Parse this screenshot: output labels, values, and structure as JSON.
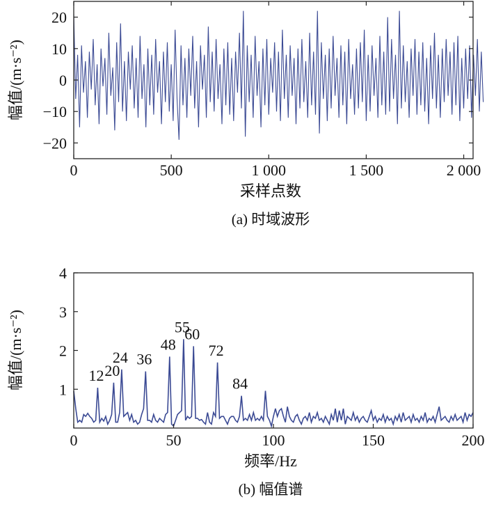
{
  "line_color": "#3b4a94",
  "chart_data": [
    {
      "type": "line",
      "caption": "(a) 时域波形",
      "xlabel": "采样点数",
      "ylabel": "幅值/(m·s⁻²)",
      "xlim": [
        0,
        2048
      ],
      "ylim": [
        -25,
        25
      ],
      "xticks": [
        0,
        500,
        1000,
        1500,
        2000
      ],
      "xtick_labels": [
        "0",
        "500",
        "1 000",
        "1 500",
        "2 000"
      ],
      "yticks": [
        20,
        10,
        0,
        -10,
        -20
      ],
      "ytick_labels": [
        "20",
        "10",
        "0",
        "−10",
        "−20"
      ],
      "grid": false,
      "x_step": 10,
      "values": [
        21,
        -6,
        8,
        -15,
        11,
        -4,
        6,
        -12,
        9,
        -3,
        13,
        -8,
        5,
        -14,
        10,
        -2,
        7,
        -11,
        15,
        -5,
        4,
        -16,
        12,
        -7,
        18,
        -10,
        6,
        -13,
        9,
        -3,
        11,
        -9,
        7,
        -12,
        14,
        -6,
        5,
        -15,
        10,
        -8,
        8,
        -11,
        13,
        -4,
        6,
        -14,
        9,
        -7,
        12,
        -10,
        5,
        -13,
        16,
        -6,
        -19,
        11,
        -8,
        7,
        -12,
        10,
        -5,
        14,
        -9,
        6,
        -15,
        11,
        -3,
        8,
        -12,
        17,
        -7,
        9,
        -10,
        13,
        -6,
        5,
        -14,
        10,
        -8,
        12,
        -11,
        7,
        -13,
        9,
        -4,
        15,
        -9,
        22,
        -18,
        11,
        -7,
        8,
        -12,
        14,
        -5,
        6,
        -15,
        10,
        -8,
        13,
        -11,
        7,
        -4,
        12,
        -10,
        9,
        -13,
        16,
        -6,
        8,
        -12,
        11,
        -5,
        7,
        -14,
        10,
        -9,
        13,
        -7,
        6,
        -12,
        15,
        -8,
        9,
        -11,
        22,
        -17,
        12,
        -6,
        8,
        -13,
        10,
        -9,
        14,
        -5,
        7,
        -12,
        11,
        -8,
        9,
        -14,
        13,
        -6,
        5,
        -11,
        10,
        -9,
        12,
        -7,
        16,
        -13,
        8,
        -10,
        11,
        -5,
        7,
        -12,
        14,
        -8,
        9,
        -11,
        20,
        -10,
        13,
        -6,
        8,
        -14,
        22,
        -9,
        11,
        -7,
        6,
        -12,
        10,
        -5,
        13,
        -11,
        9,
        -8,
        12,
        -10,
        7,
        -14,
        11,
        -6,
        15,
        -9,
        8,
        -12,
        10,
        -7,
        13,
        -5,
        9,
        -11,
        12,
        -8,
        14,
        -13,
        7,
        -9,
        10,
        -6,
        11,
        -12,
        8,
        -5,
        13,
        -10,
        9,
        -7
      ]
    },
    {
      "type": "line",
      "caption": "(b) 幅值谱",
      "xlabel": "频率/Hz",
      "ylabel": "幅值/(m·s⁻²)",
      "xlim": [
        0,
        200
      ],
      "ylim": [
        0,
        4
      ],
      "xticks": [
        0,
        50,
        100,
        150,
        200
      ],
      "xtick_labels": [
        "0",
        "50",
        "100",
        "150",
        "200"
      ],
      "yticks": [
        4,
        3,
        2,
        1
      ],
      "ytick_labels": [
        "4",
        "3",
        "2",
        "1"
      ],
      "grid": false,
      "x_step": 1,
      "values": [
        0.95,
        0.5,
        0.15,
        0.2,
        0.15,
        0.35,
        0.3,
        0.38,
        0.3,
        0.25,
        0.15,
        0.2,
        1.04,
        0.15,
        0.25,
        0.18,
        0.3,
        0.1,
        0.2,
        0.35,
        1.17,
        0.15,
        0.15,
        0.4,
        1.51,
        0.3,
        0.35,
        0.4,
        0.2,
        0.35,
        0.15,
        0.2,
        0.1,
        0.15,
        0.35,
        0.5,
        1.46,
        0.2,
        0.2,
        0.15,
        0.35,
        0.2,
        0.15,
        0.25,
        0.2,
        0.15,
        0.35,
        0.4,
        1.84,
        0.1,
        0.05,
        0.2,
        0.35,
        0.4,
        0.45,
        2.29,
        0.2,
        0.3,
        0.25,
        0.3,
        2.11,
        0.25,
        0.25,
        0.2,
        0.22,
        0.15,
        0.1,
        0.4,
        0.15,
        0.1,
        0.4,
        0.3,
        1.69,
        0.25,
        0.3,
        0.3,
        0.2,
        0.1,
        0.25,
        0.3,
        0.3,
        0.2,
        0.15,
        0.3,
        0.83,
        0.2,
        0.25,
        0.2,
        0.35,
        0.2,
        0.4,
        0.2,
        0.25,
        0.2,
        0.3,
        0.2,
        0.96,
        0.3,
        0.2,
        0.05,
        0.3,
        0.5,
        0.3,
        0.45,
        0.5,
        0.3,
        0.15,
        0.55,
        0.3,
        0.2,
        0.15,
        0.3,
        0.35,
        0.2,
        0.1,
        0.25,
        0.3,
        0.2,
        0.4,
        0.15,
        0.3,
        0.25,
        0.4,
        0.2,
        0.25,
        0.15,
        0.3,
        0.2,
        0.1,
        0.35,
        0.2,
        0.5,
        0.15,
        0.45,
        0.2,
        0.5,
        0.1,
        0.3,
        0.25,
        0.2,
        0.4,
        0.2,
        0.3,
        0.15,
        0.25,
        0.3,
        0.2,
        0.15,
        0.3,
        0.45,
        0.2,
        0.3,
        0.15,
        0.25,
        0.2,
        0.35,
        0.15,
        0.3,
        0.2,
        0.25,
        0.1,
        0.3,
        0.2,
        0.35,
        0.15,
        0.4,
        0.2,
        0.25,
        0.3,
        0.15,
        0.35,
        0.2,
        0.25,
        0.15,
        0.3,
        0.2,
        0.4,
        0.15,
        0.25,
        0.2,
        0.3,
        0.15,
        0.35,
        0.55,
        0.2,
        0.25,
        0.3,
        0.2,
        0.15,
        0.3,
        0.2,
        0.35,
        0.2,
        0.25,
        0.3,
        0.15,
        0.4,
        0.2,
        0.35,
        0.3,
        0.4
      ],
      "annotations": [
        {
          "text": "12",
          "x": 12,
          "y": 1.04
        },
        {
          "text": "20",
          "x": 20,
          "y": 1.17
        },
        {
          "text": "24",
          "x": 24,
          "y": 1.51
        },
        {
          "text": "36",
          "x": 36,
          "y": 1.46
        },
        {
          "text": "48",
          "x": 48,
          "y": 1.84
        },
        {
          "text": "55",
          "x": 55,
          "y": 2.29
        },
        {
          "text": "60",
          "x": 60,
          "y": 2.11
        },
        {
          "text": "72",
          "x": 72,
          "y": 1.69
        },
        {
          "text": "84",
          "x": 84,
          "y": 0.83
        }
      ]
    }
  ]
}
